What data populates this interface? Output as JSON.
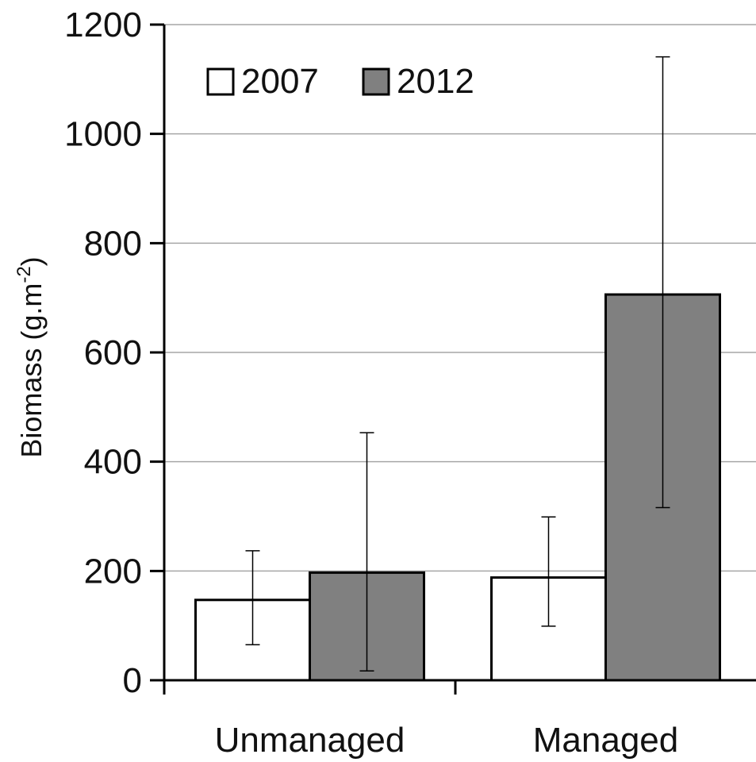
{
  "chart_data": {
    "type": "bar",
    "categories": [
      "Unmanaged",
      "Managed"
    ],
    "series": [
      {
        "name": "2007",
        "color": "#ffffff",
        "values": [
          147,
          188
        ],
        "error_low": [
          65,
          99
        ],
        "error_high": [
          237,
          299
        ]
      },
      {
        "name": "2012",
        "color": "#808080",
        "values": [
          197,
          706
        ],
        "error_low": [
          17,
          316
        ],
        "error_high": [
          453,
          1141
        ]
      }
    ],
    "ylabel_main": "Biomass (g.m",
    "ylabel_sup": "-2",
    "ylabel_close": ")",
    "xlabel": "",
    "ylim": [
      0,
      1200
    ],
    "yticks": [
      0,
      200,
      400,
      600,
      800,
      1000,
      1200
    ],
    "ytick_labels": [
      "0",
      "200",
      "400",
      "600",
      "800",
      "1000",
      "1200"
    ],
    "grid": true,
    "grid_color": "#a6a6a6",
    "legend_position": "top-left"
  }
}
